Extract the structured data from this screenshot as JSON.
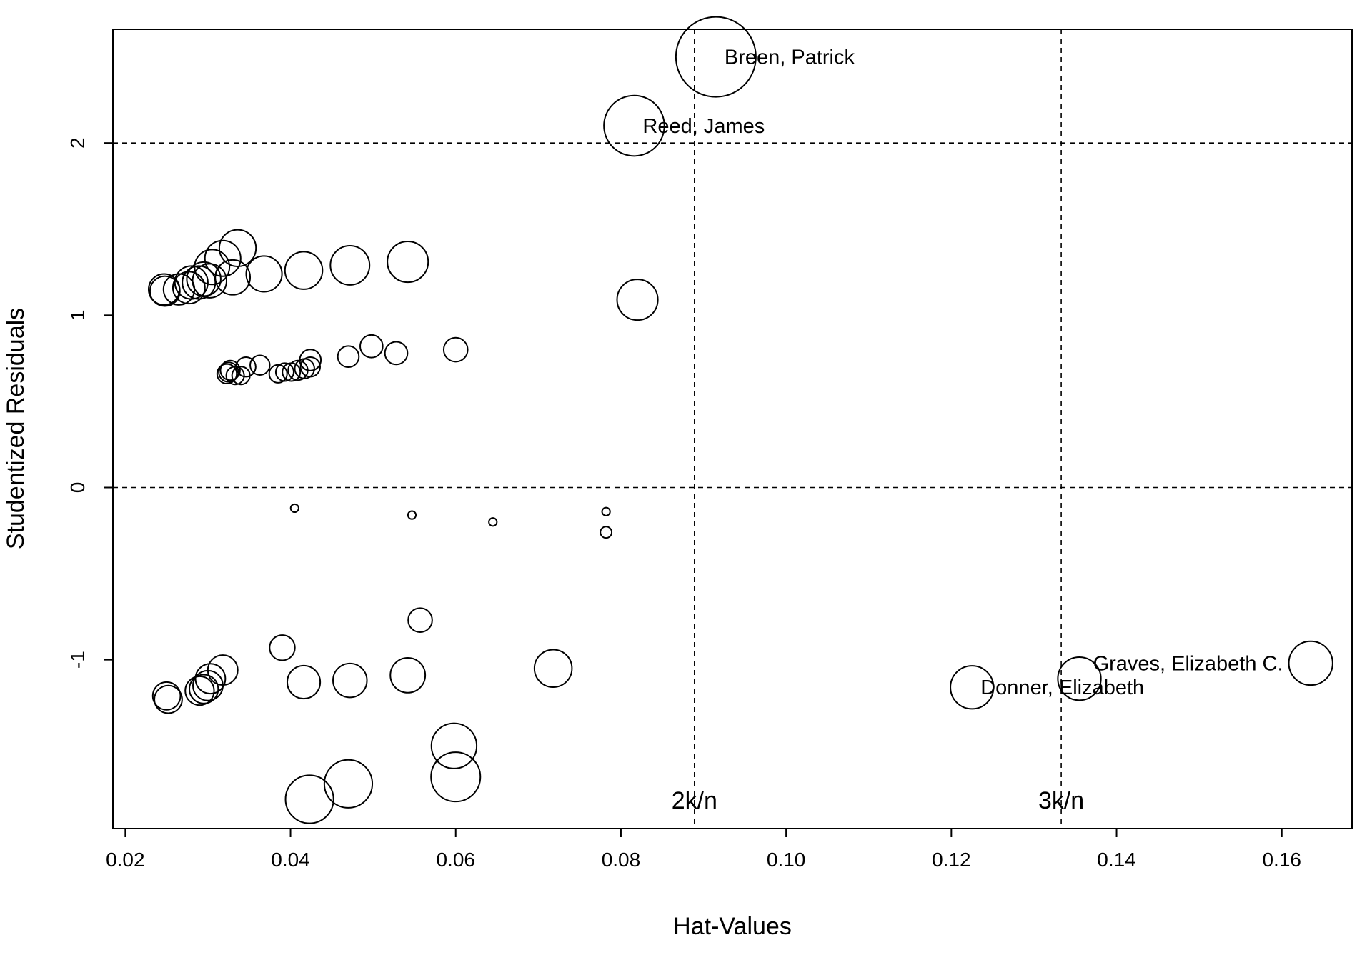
{
  "chart_data": {
    "type": "scatter",
    "title": "",
    "xlabel": "Hat-Values",
    "ylabel": "Studentized Residuals",
    "xlim": [
      0.0185,
      0.1685
    ],
    "ylim": [
      -1.98,
      2.66
    ],
    "xticks": [
      0.02,
      0.04,
      0.06,
      0.08,
      0.1,
      0.12,
      0.14,
      0.16
    ],
    "xtick_labels": [
      "0.02",
      "0.04",
      "0.06",
      "0.08",
      "0.10",
      "0.12",
      "0.14",
      "0.16"
    ],
    "yticks": [
      -1,
      0,
      1,
      2
    ],
    "ytick_labels": [
      "-1",
      "0",
      "1",
      "2"
    ],
    "grid": false,
    "legend": "none",
    "point_size_encoding": "Cook's distance (bubble area)",
    "reference_lines": [
      {
        "orientation": "horizontal",
        "value": 2,
        "style": "dashed"
      },
      {
        "orientation": "horizontal",
        "value": 0,
        "style": "dashed"
      },
      {
        "orientation": "vertical",
        "value": 0.0889,
        "style": "dashed",
        "label": "2k/n"
      },
      {
        "orientation": "vertical",
        "value": 0.1333,
        "style": "dashed",
        "label": "3k/n"
      }
    ],
    "points": [
      {
        "x": 0.0915,
        "y": 2.5,
        "size": 1.0,
        "label": "Breen, Patrick"
      },
      {
        "x": 0.0816,
        "y": 2.1,
        "size": 0.57,
        "label": "Reed, James"
      },
      {
        "x": 0.1635,
        "y": -1.02,
        "size": 0.3,
        "label": "Graves, Elizabeth C."
      },
      {
        "x": 0.1225,
        "y": -1.16,
        "size": 0.29,
        "label": "Donner, Elizabeth"
      },
      {
        "x": 0.1355,
        "y": -1.11,
        "size": 0.29,
        "label": ""
      },
      {
        "x": 0.0247,
        "y": 1.15,
        "size": 0.15
      },
      {
        "x": 0.0248,
        "y": 1.14,
        "size": 0.14
      },
      {
        "x": 0.0265,
        "y": 1.15,
        "size": 0.15
      },
      {
        "x": 0.0277,
        "y": 1.16,
        "size": 0.16
      },
      {
        "x": 0.028,
        "y": 1.19,
        "size": 0.17
      },
      {
        "x": 0.0289,
        "y": 1.19,
        "size": 0.17
      },
      {
        "x": 0.0295,
        "y": 1.21,
        "size": 0.18
      },
      {
        "x": 0.0302,
        "y": 1.2,
        "size": 0.18
      },
      {
        "x": 0.0305,
        "y": 1.28,
        "size": 0.19
      },
      {
        "x": 0.0318,
        "y": 1.33,
        "size": 0.2
      },
      {
        "x": 0.033,
        "y": 1.22,
        "size": 0.19
      },
      {
        "x": 0.0336,
        "y": 1.39,
        "size": 0.21
      },
      {
        "x": 0.0368,
        "y": 1.24,
        "size": 0.2
      },
      {
        "x": 0.0416,
        "y": 1.26,
        "size": 0.22
      },
      {
        "x": 0.0472,
        "y": 1.29,
        "size": 0.24
      },
      {
        "x": 0.0542,
        "y": 1.31,
        "size": 0.26
      },
      {
        "x": 0.082,
        "y": 1.09,
        "size": 0.26
      },
      {
        "x": 0.0323,
        "y": 0.66,
        "size": 0.06
      },
      {
        "x": 0.0325,
        "y": 0.67,
        "size": 0.06
      },
      {
        "x": 0.0327,
        "y": 0.68,
        "size": 0.06
      },
      {
        "x": 0.0333,
        "y": 0.65,
        "size": 0.05
      },
      {
        "x": 0.034,
        "y": 0.65,
        "size": 0.05
      },
      {
        "x": 0.0346,
        "y": 0.7,
        "size": 0.06
      },
      {
        "x": 0.0363,
        "y": 0.71,
        "size": 0.06
      },
      {
        "x": 0.0385,
        "y": 0.66,
        "size": 0.05
      },
      {
        "x": 0.0393,
        "y": 0.67,
        "size": 0.05
      },
      {
        "x": 0.0401,
        "y": 0.67,
        "size": 0.05
      },
      {
        "x": 0.0409,
        "y": 0.68,
        "size": 0.06
      },
      {
        "x": 0.0417,
        "y": 0.69,
        "size": 0.06
      },
      {
        "x": 0.0424,
        "y": 0.7,
        "size": 0.06
      },
      {
        "x": 0.0424,
        "y": 0.74,
        "size": 0.07
      },
      {
        "x": 0.047,
        "y": 0.76,
        "size": 0.07
      },
      {
        "x": 0.0498,
        "y": 0.82,
        "size": 0.08
      },
      {
        "x": 0.0528,
        "y": 0.78,
        "size": 0.08
      },
      {
        "x": 0.06,
        "y": 0.8,
        "size": 0.09
      },
      {
        "x": 0.0405,
        "y": -0.12,
        "size": 0.01
      },
      {
        "x": 0.0547,
        "y": -0.16,
        "size": 0.01
      },
      {
        "x": 0.0645,
        "y": -0.2,
        "size": 0.01
      },
      {
        "x": 0.0782,
        "y": -0.14,
        "size": 0.01
      },
      {
        "x": 0.0782,
        "y": -0.26,
        "size": 0.02
      },
      {
        "x": 0.0557,
        "y": -0.77,
        "size": 0.09
      },
      {
        "x": 0.039,
        "y": -0.93,
        "size": 0.1
      },
      {
        "x": 0.025,
        "y": -1.21,
        "size": 0.12
      },
      {
        "x": 0.0252,
        "y": -1.23,
        "size": 0.12
      },
      {
        "x": 0.029,
        "y": -1.18,
        "size": 0.13
      },
      {
        "x": 0.0295,
        "y": -1.17,
        "size": 0.13
      },
      {
        "x": 0.03,
        "y": -1.15,
        "size": 0.14
      },
      {
        "x": 0.0303,
        "y": -1.11,
        "size": 0.14
      },
      {
        "x": 0.0318,
        "y": -1.06,
        "size": 0.14
      },
      {
        "x": 0.0416,
        "y": -1.13,
        "size": 0.17
      },
      {
        "x": 0.0472,
        "y": -1.12,
        "size": 0.18
      },
      {
        "x": 0.0542,
        "y": -1.09,
        "size": 0.19
      },
      {
        "x": 0.0718,
        "y": -1.05,
        "size": 0.22
      },
      {
        "x": 0.0598,
        "y": -1.5,
        "size": 0.32
      },
      {
        "x": 0.06,
        "y": -1.68,
        "size": 0.38
      },
      {
        "x": 0.047,
        "y": -1.72,
        "size": 0.36
      },
      {
        "x": 0.0423,
        "y": -1.81,
        "size": 0.36
      }
    ]
  }
}
